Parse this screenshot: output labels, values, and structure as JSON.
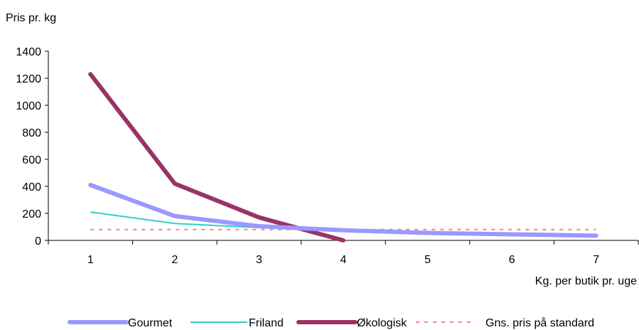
{
  "chart_data": {
    "type": "line",
    "ylabel": "Pris pr. kg",
    "xlabel": "Kg. per butik pr. uge",
    "x": [
      1,
      2,
      3,
      4,
      5,
      6,
      7
    ],
    "x_ticks": [
      "1",
      "2",
      "3",
      "4",
      "5",
      "6",
      "7"
    ],
    "ylim": [
      0,
      1400
    ],
    "y_ticks": [
      "0",
      "200",
      "400",
      "600",
      "800",
      "1000",
      "1200",
      "1400"
    ],
    "grid": false,
    "legend_position": "bottom",
    "series": [
      {
        "name": "Gourmet",
        "color": "#9999ff",
        "style": "thick",
        "x": [
          1,
          2,
          3,
          4,
          5,
          6,
          7
        ],
        "values": [
          410,
          180,
          105,
          75,
          55,
          45,
          35
        ]
      },
      {
        "name": "Friland",
        "color": "#33cccc",
        "style": "thin",
        "x": [
          1,
          2,
          3,
          4,
          5,
          6,
          7
        ],
        "values": [
          210,
          125,
          95,
          70,
          55,
          45,
          40
        ]
      },
      {
        "name": "Økologisk",
        "color": "#993366",
        "style": "thick",
        "x": [
          1,
          2,
          3,
          4
        ],
        "values": [
          1230,
          420,
          170,
          0
        ]
      },
      {
        "name": "Gns. pris på standard",
        "color": "#ff8080",
        "style": "dashed",
        "x": [
          1,
          2,
          3,
          4,
          5,
          6,
          7
        ],
        "values": [
          80,
          80,
          80,
          80,
          80,
          80,
          80
        ]
      }
    ]
  }
}
